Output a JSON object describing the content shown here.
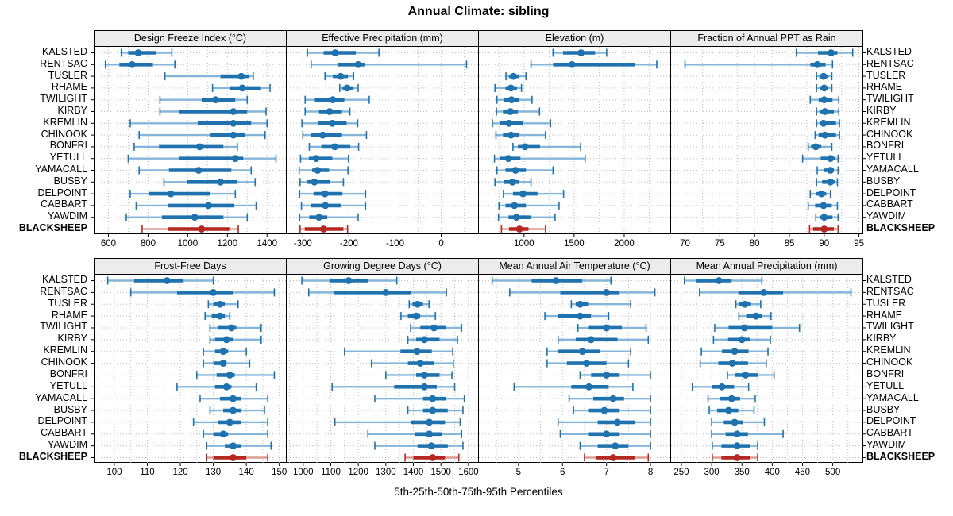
{
  "title": "Annual Climate: sibling",
  "footer": "5th-25th-50th-75th-95th Percentiles",
  "highlight_station": "BLACKSHEEP",
  "colors": {
    "series": "#1f72ae",
    "series_light": "#85b6d9",
    "highlight": "#b42821",
    "highlight_light": "#dc9a91",
    "grid": "#bdbdbd",
    "header_bg": "#ececec",
    "border": "#000000"
  },
  "chart_data": {
    "type": "dotplot-interval",
    "subtype": "trellis 2x4 panels, percentile intervals per station",
    "percentiles": [
      "5th",
      "25th",
      "50th",
      "75th",
      "95th"
    ],
    "legend_note": "5th-95th thin line with end caps, 25th-75th thick bar, dot = median; BLACKSHEEP highlighted red",
    "stations": [
      "KALSTED",
      "RENTSAC",
      "TUSLER",
      "RHAME",
      "TWILIGHT",
      "KIRBY",
      "KREMLIN",
      "CHINOOK",
      "BONFRI",
      "YETULL",
      "YAMACALL",
      "BUSBY",
      "DELPOINT",
      "CABBART",
      "YAWDIM",
      "BLACKSHEEP"
    ],
    "panels": [
      {
        "title": "Design Freeze Index (°C)",
        "xlim": [
          530,
          1495
        ],
        "ticks": [
          600,
          800,
          1000,
          1200,
          1400
        ],
        "minor_step": 100,
        "series": [
          [
            665,
            700,
            750,
            840,
            920
          ],
          [
            585,
            655,
            720,
            825,
            935
          ],
          [
            885,
            1165,
            1270,
            1310,
            1330
          ],
          [
            1125,
            1210,
            1275,
            1370,
            1415
          ],
          [
            860,
            1070,
            1140,
            1240,
            1300
          ],
          [
            860,
            955,
            1230,
            1300,
            1395
          ],
          [
            710,
            1050,
            1230,
            1320,
            1400
          ],
          [
            755,
            1115,
            1230,
            1290,
            1390
          ],
          [
            730,
            855,
            1060,
            1180,
            1250
          ],
          [
            700,
            955,
            1240,
            1280,
            1445
          ],
          [
            755,
            905,
            1055,
            1220,
            1320
          ],
          [
            880,
            995,
            1165,
            1250,
            1340
          ],
          [
            710,
            805,
            915,
            1115,
            1240
          ],
          [
            740,
            900,
            1105,
            1235,
            1345
          ],
          [
            690,
            870,
            1035,
            1180,
            1300
          ],
          [
            770,
            900,
            1070,
            1210,
            1255
          ]
        ]
      },
      {
        "title": "Effective Precipitation (mm)",
        "xlim": [
          -335,
          80
        ],
        "ticks": [
          -300,
          -200,
          -100,
          0
        ],
        "minor_step": 50,
        "series": [
          [
            -290,
            -255,
            -230,
            -185,
            -135
          ],
          [
            -282,
            -225,
            -180,
            -165,
            55
          ],
          [
            -252,
            -235,
            -218,
            -202,
            -190
          ],
          [
            -220,
            -214,
            -204,
            -190,
            -180
          ],
          [
            -295,
            -274,
            -235,
            -210,
            -156
          ],
          [
            -295,
            -265,
            -242,
            -215,
            -198
          ],
          [
            -302,
            -268,
            -236,
            -205,
            -181
          ],
          [
            -300,
            -282,
            -257,
            -215,
            -162
          ],
          [
            -286,
            -260,
            -231,
            -197,
            -179
          ],
          [
            -305,
            -287,
            -271,
            -236,
            -201
          ],
          [
            -308,
            -280,
            -268,
            -243,
            -202
          ],
          [
            -306,
            -290,
            -275,
            -242,
            -212
          ],
          [
            -307,
            -277,
            -252,
            -214,
            -164
          ],
          [
            -303,
            -282,
            -251,
            -217,
            -164
          ],
          [
            -307,
            -286,
            -265,
            -247,
            -180
          ],
          [
            -306,
            -296,
            -255,
            -212,
            -203
          ]
        ]
      },
      {
        "title": "Elevation (m)",
        "xlim": [
          550,
          2460
        ],
        "ticks": [
          1000,
          1500,
          2000
        ],
        "minor_step": 250,
        "series": [
          [
            1290,
            1390,
            1570,
            1710,
            1825
          ],
          [
            1070,
            1290,
            1480,
            2110,
            2325
          ],
          [
            820,
            850,
            895,
            955,
            1020
          ],
          [
            710,
            815,
            870,
            930,
            975
          ],
          [
            730,
            800,
            875,
            955,
            1080
          ],
          [
            725,
            790,
            865,
            940,
            1155
          ],
          [
            685,
            760,
            850,
            990,
            1265
          ],
          [
            720,
            790,
            870,
            955,
            1215
          ],
          [
            890,
            940,
            1010,
            1160,
            1565
          ],
          [
            705,
            760,
            845,
            965,
            1610
          ],
          [
            730,
            815,
            915,
            1020,
            1290
          ],
          [
            710,
            800,
            885,
            955,
            1070
          ],
          [
            795,
            890,
            990,
            1135,
            1395
          ],
          [
            750,
            815,
            905,
            1020,
            1350
          ],
          [
            745,
            845,
            925,
            1070,
            1310
          ],
          [
            775,
            850,
            955,
            1045,
            1215
          ]
        ]
      },
      {
        "title": "Fraction of Annual PPT as Rain",
        "xlim": [
          68,
          95.5
        ],
        "ticks": [
          70,
          75,
          80,
          85,
          90,
          95
        ],
        "minor_step": 2.5,
        "series": [
          [
            86,
            89.1,
            91,
            91.9,
            94.1
          ],
          [
            70,
            88,
            89,
            90.2,
            91.2
          ],
          [
            88.9,
            89.3,
            89.9,
            90.6,
            91.1
          ],
          [
            88.9,
            89.4,
            90,
            90.5,
            91.1
          ],
          [
            88,
            89.2,
            90,
            91.2,
            92.1
          ],
          [
            88.9,
            89.4,
            90.1,
            91.4,
            92.1
          ],
          [
            88.9,
            89.4,
            89.9,
            91.7,
            92.2
          ],
          [
            88.7,
            89.2,
            90.1,
            91.7,
            92.2
          ],
          [
            87.7,
            88.1,
            88.8,
            89.6,
            91.1
          ],
          [
            86.9,
            89.5,
            90.9,
            91.6,
            92
          ],
          [
            89,
            89.9,
            90.9,
            91.4,
            92
          ],
          [
            88.9,
            89.7,
            90.9,
            91.5,
            91.9
          ],
          [
            88,
            88.8,
            89.6,
            90.3,
            90.9
          ],
          [
            87.7,
            88.7,
            89.9,
            91.1,
            91.9
          ],
          [
            88.8,
            89.4,
            90,
            91.2,
            92
          ],
          [
            87.9,
            88.4,
            90,
            91.4,
            92
          ]
        ]
      },
      {
        "title": "Frost-Free Days",
        "xlim": [
          94,
          152
        ],
        "ticks": [
          100,
          110,
          120,
          130,
          140,
          150
        ],
        "minor_step": 5,
        "series": [
          [
            98,
            106,
            116,
            121,
            130
          ],
          [
            105,
            119,
            130,
            136,
            148.5
          ],
          [
            128.5,
            130,
            132,
            133.5,
            137.5
          ],
          [
            127.5,
            129.5,
            132,
            133.5,
            135
          ],
          [
            129,
            131.5,
            135.5,
            137,
            144.5
          ],
          [
            129,
            130.5,
            134,
            136,
            144.5
          ],
          [
            127,
            130.5,
            133,
            134.5,
            140
          ],
          [
            127,
            130,
            133,
            134,
            141
          ],
          [
            125,
            131,
            135,
            136.5,
            148.5
          ],
          [
            119,
            130.5,
            134,
            135.5,
            143
          ],
          [
            126,
            132,
            136,
            138.5,
            146.5
          ],
          [
            129,
            133,
            136,
            138.5,
            145.5
          ],
          [
            124,
            131.5,
            135,
            138.5,
            146.5
          ],
          [
            127,
            130,
            133,
            134.5,
            146.5
          ],
          [
            128,
            133.5,
            136,
            138.5,
            147.5
          ],
          [
            128,
            130,
            136,
            140,
            146.5
          ]
        ]
      },
      {
        "title": "Growing Degree Days (°C)",
        "xlim": [
          940,
          1635
        ],
        "ticks": [
          1000,
          1100,
          1200,
          1300,
          1400,
          1500,
          1600
        ],
        "minor_step": 50,
        "series": [
          [
            995,
            1095,
            1165,
            1235,
            1340
          ],
          [
            1020,
            1110,
            1300,
            1390,
            1520
          ],
          [
            1385,
            1397,
            1415,
            1435,
            1457
          ],
          [
            1355,
            1380,
            1410,
            1425,
            1480
          ],
          [
            1390,
            1425,
            1475,
            1520,
            1575
          ],
          [
            1380,
            1410,
            1440,
            1495,
            1560
          ],
          [
            1150,
            1353,
            1413,
            1467,
            1543
          ],
          [
            1248,
            1380,
            1425,
            1475,
            1545
          ],
          [
            1300,
            1410,
            1440,
            1495,
            1540
          ],
          [
            1105,
            1330,
            1440,
            1485,
            1550
          ],
          [
            1260,
            1435,
            1470,
            1520,
            1585
          ],
          [
            1380,
            1435,
            1470,
            1525,
            1580
          ],
          [
            1115,
            1390,
            1458,
            1515,
            1570
          ],
          [
            1235,
            1405,
            1458,
            1505,
            1575
          ],
          [
            1260,
            1415,
            1465,
            1525,
            1580
          ],
          [
            1370,
            1400,
            1470,
            1515,
            1565
          ]
        ]
      },
      {
        "title": "Mean Annual Air Temperature (°C)",
        "xlim": [
          4.1,
          8.45
        ],
        "ticks": [
          5,
          6,
          7,
          8
        ],
        "minor_step": 0.5,
        "series": [
          [
            4.4,
            5.3,
            5.85,
            6.45,
            7.1
          ],
          [
            4.8,
            5.95,
            7.0,
            7.3,
            8.1
          ],
          [
            6.2,
            6.3,
            6.4,
            6.6,
            7.55
          ],
          [
            5.6,
            5.9,
            6.4,
            6.65,
            7.05
          ],
          [
            6.35,
            6.6,
            7.0,
            7.35,
            7.9
          ],
          [
            5.9,
            6.3,
            6.65,
            7.25,
            7.95
          ],
          [
            5.65,
            5.9,
            6.45,
            6.85,
            7.55
          ],
          [
            5.65,
            6.1,
            6.55,
            7.0,
            7.5
          ],
          [
            6.4,
            6.65,
            7.0,
            7.3,
            8.0
          ],
          [
            4.9,
            6.2,
            6.6,
            7.05,
            7.6
          ],
          [
            6.15,
            6.7,
            7.15,
            7.4,
            8.0
          ],
          [
            6.25,
            6.6,
            6.95,
            7.3,
            8.0
          ],
          [
            5.9,
            6.8,
            7.25,
            7.65,
            8.0
          ],
          [
            5.95,
            6.6,
            7.0,
            7.3,
            8.0
          ],
          [
            6.4,
            6.8,
            7.2,
            7.5,
            8.0
          ],
          [
            6.5,
            6.75,
            7.15,
            7.65,
            7.95
          ]
        ]
      },
      {
        "title": "Mean Annual Precipitation (mm)",
        "xlim": [
          233,
          549
        ],
        "ticks": [
          250,
          300,
          350,
          400,
          450,
          500
        ],
        "minor_step": 25,
        "series": [
          [
            255,
            275,
            312,
            333,
            383
          ],
          [
            280,
            344,
            386,
            418,
            530
          ],
          [
            340,
            345,
            355,
            365,
            381
          ],
          [
            345,
            357,
            373,
            383,
            398
          ],
          [
            305,
            328,
            354,
            400,
            445
          ],
          [
            303,
            327,
            350,
            364,
            397
          ],
          [
            283,
            317,
            338,
            361,
            393
          ],
          [
            281,
            311,
            334,
            360,
            390
          ],
          [
            326,
            338,
            356,
            377,
            403
          ],
          [
            268,
            300,
            317,
            337,
            361
          ],
          [
            294,
            314,
            333,
            347,
            372
          ],
          [
            296,
            309,
            328,
            344,
            370
          ],
          [
            300,
            320,
            338,
            352,
            387
          ],
          [
            300,
            323,
            342,
            360,
            418
          ],
          [
            301,
            316,
            342,
            364,
            376
          ],
          [
            301,
            316,
            342,
            364,
            376
          ]
        ]
      }
    ]
  }
}
